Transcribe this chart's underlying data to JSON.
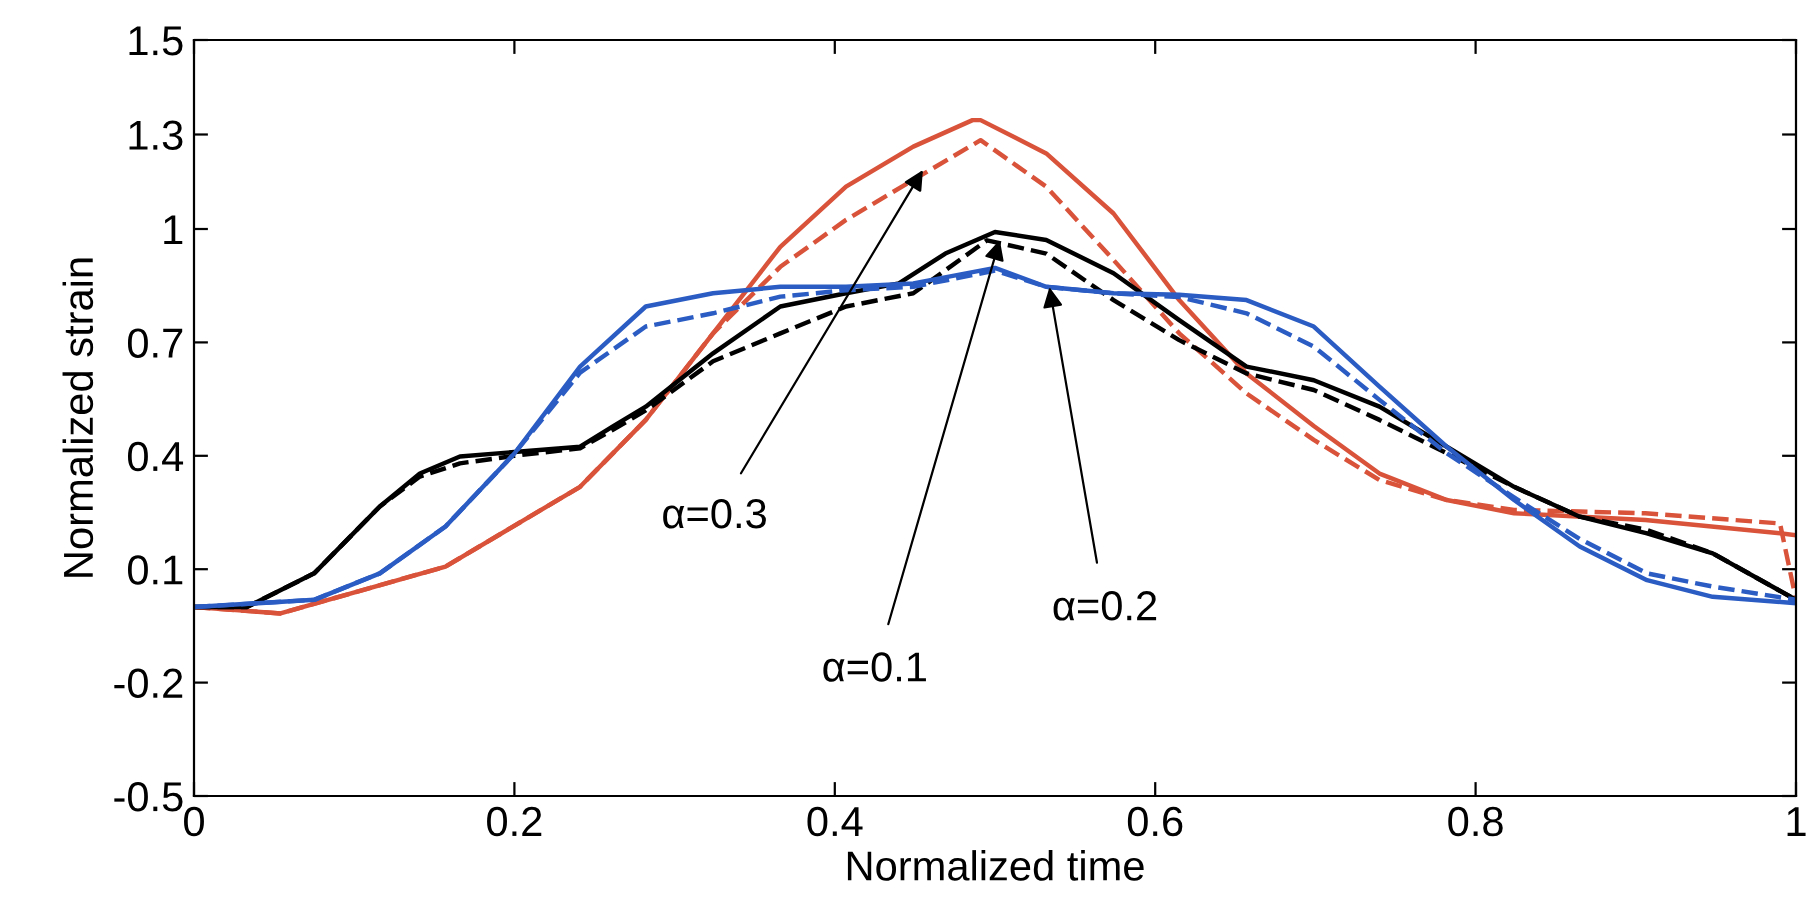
{
  "chart_data": {
    "type": "line",
    "xlabel": "Normalized time",
    "ylabel": "Normalized strain",
    "xlim": [
      0,
      1
    ],
    "ylim": [
      -0.5,
      1.5
    ],
    "xticks": [
      0,
      0.2,
      0.4,
      0.6,
      0.8,
      1
    ],
    "yticks": [
      -0.5,
      -0.2,
      0.1,
      0.4,
      0.7,
      1,
      {
        "value": 1.25,
        "label": "1.3"
      },
      1.5
    ],
    "grid": false,
    "legend": false,
    "series": [
      {
        "color": "#d9523a",
        "line_style": "solid",
        "x": [
          0,
          0.054,
          0.157,
          0.241,
          0.282,
          0.324,
          0.366,
          0.407,
          0.449,
          0.486,
          0.491,
          0.532,
          0.574,
          0.615,
          0.657,
          0.699,
          0.74,
          0.782,
          0.824,
          0.906,
          0.99,
          1.0
        ],
        "values": [
          0,
          -0.017,
          0.107,
          0.318,
          0.495,
          0.724,
          0.953,
          1.112,
          1.218,
          1.288,
          1.288,
          1.2,
          1.041,
          0.812,
          0.618,
          0.479,
          0.353,
          0.283,
          0.248,
          0.23,
          0.195,
          0.19
        ]
      },
      {
        "color": "#d9523a",
        "line_style": "dashed",
        "x": [
          0,
          0.054,
          0.157,
          0.241,
          0.282,
          0.324,
          0.366,
          0.407,
          0.449,
          0.491,
          0.532,
          0.574,
          0.615,
          0.657,
          0.699,
          0.74,
          0.782,
          0.824,
          0.906,
          0.99,
          1.0
        ],
        "values": [
          0,
          -0.017,
          0.107,
          0.318,
          0.495,
          0.724,
          0.9,
          1.024,
          1.13,
          1.235,
          1.112,
          0.918,
          0.724,
          0.565,
          0.442,
          0.336,
          0.283,
          0.257,
          0.248,
          0.221,
          0.02
        ]
      },
      {
        "color": "#000000",
        "line_style": "solid",
        "x": [
          0,
          0.033,
          0.075,
          0.116,
          0.141,
          0.166,
          0.2,
          0.241,
          0.262,
          0.282,
          0.324,
          0.366,
          0.407,
          0.44,
          0.469,
          0.5,
          0.532,
          0.574,
          0.615,
          0.657,
          0.699,
          0.74,
          0.782,
          0.824,
          0.865,
          0.907,
          0.948,
          1.0
        ],
        "values": [
          0,
          0,
          0.089,
          0.266,
          0.353,
          0.398,
          0.41,
          0.424,
          0.479,
          0.53,
          0.671,
          0.795,
          0.83,
          0.856,
          0.935,
          0.992,
          0.971,
          0.883,
          0.759,
          0.636,
          0.6,
          0.53,
          0.424,
          0.318,
          0.239,
          0.195,
          0.142,
          0.019
        ]
      },
      {
        "color": "#000000",
        "line_style": "dashed",
        "x": [
          0,
          0.033,
          0.075,
          0.116,
          0.141,
          0.166,
          0.2,
          0.241,
          0.262,
          0.282,
          0.324,
          0.366,
          0.407,
          0.449,
          0.495,
          0.532,
          0.574,
          0.615,
          0.657,
          0.699,
          0.74,
          0.782,
          0.824,
          0.865,
          0.907,
          0.948,
          1.0
        ],
        "values": [
          0,
          0,
          0.089,
          0.266,
          0.345,
          0.38,
          0.4,
          0.42,
          0.47,
          0.52,
          0.65,
          0.724,
          0.795,
          0.83,
          0.97,
          0.935,
          0.812,
          0.706,
          0.618,
          0.574,
          0.495,
          0.407,
          0.318,
          0.239,
          0.204,
          0.142,
          0.019
        ]
      },
      {
        "color": "#2a5cc4",
        "line_style": "solid",
        "x": [
          0,
          0.075,
          0.116,
          0.157,
          0.2,
          0.241,
          0.282,
          0.324,
          0.366,
          0.407,
          0.449,
          0.5,
          0.532,
          0.574,
          0.615,
          0.657,
          0.699,
          0.74,
          0.782,
          0.824,
          0.865,
          0.907,
          0.948,
          1.0
        ],
        "values": [
          0,
          0.019,
          0.089,
          0.213,
          0.406,
          0.636,
          0.795,
          0.83,
          0.847,
          0.847,
          0.856,
          0.897,
          0.847,
          0.83,
          0.826,
          0.812,
          0.742,
          0.583,
          0.424,
          0.283,
          0.16,
          0.071,
          0.027,
          0.01
        ]
      },
      {
        "color": "#2a5cc4",
        "line_style": "dashed",
        "x": [
          0,
          0.075,
          0.116,
          0.157,
          0.2,
          0.241,
          0.282,
          0.324,
          0.366,
          0.407,
          0.449,
          0.5,
          0.532,
          0.574,
          0.615,
          0.657,
          0.699,
          0.74,
          0.782,
          0.824,
          0.865,
          0.907,
          0.948,
          1.0
        ],
        "values": [
          0,
          0.019,
          0.089,
          0.213,
          0.406,
          0.62,
          0.742,
          0.777,
          0.821,
          0.838,
          0.847,
          0.89,
          0.847,
          0.83,
          0.82,
          0.777,
          0.689,
          0.548,
          0.407,
          0.29,
          0.18,
          0.089,
          0.054,
          0.019
        ]
      }
    ],
    "annotations": [
      {
        "text": "α=0.3",
        "x": 0.455,
        "y": 1.156
      },
      {
        "text": "α=0.1",
        "x": 0.503,
        "y": 0.971
      },
      {
        "text": "α=0.2",
        "x": 0.534,
        "y": 0.846
      }
    ]
  }
}
